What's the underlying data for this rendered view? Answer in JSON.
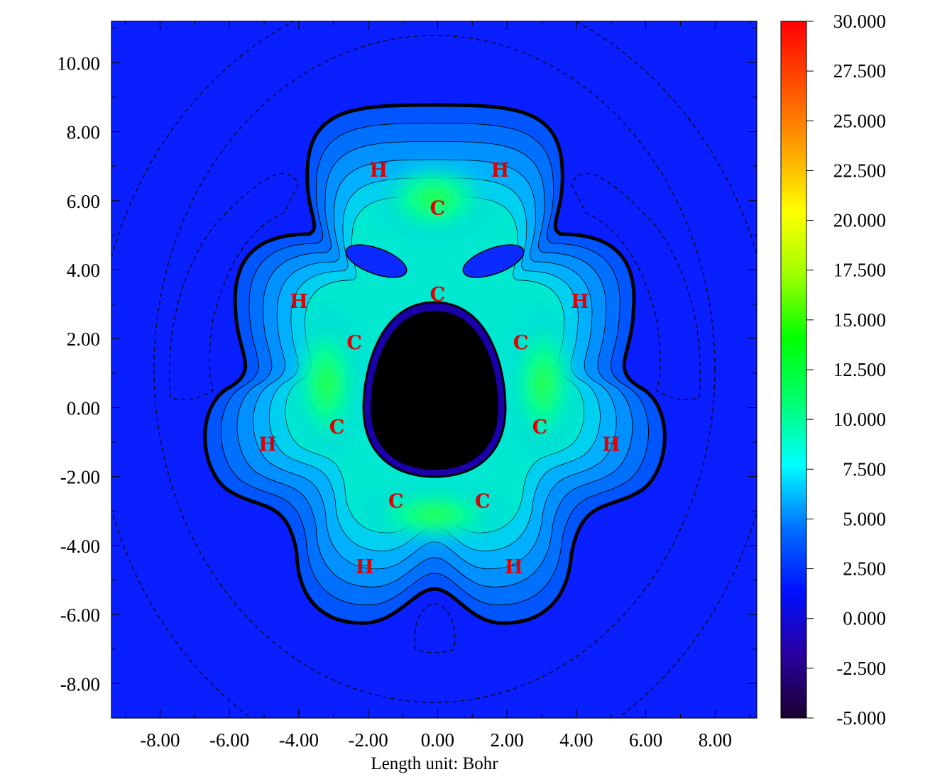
{
  "chart_data": {
    "type": "heatmap",
    "title": "",
    "xlabel": "Length unit: Bohr",
    "ylabel": "",
    "xlim": [
      -9.4,
      9.2
    ],
    "ylim": [
      -9.0,
      11.2
    ],
    "x_ticks": [
      {
        "value": -8,
        "label": "-8.00"
      },
      {
        "value": -6,
        "label": "-6.00"
      },
      {
        "value": -4,
        "label": "-4.00"
      },
      {
        "value": -2,
        "label": "-2.00"
      },
      {
        "value": 0,
        "label": "0.00"
      },
      {
        "value": 2,
        "label": "2.00"
      },
      {
        "value": 4,
        "label": "4.00"
      },
      {
        "value": 6,
        "label": "6.00"
      },
      {
        "value": 8,
        "label": "8.00"
      }
    ],
    "y_ticks": [
      {
        "value": 10,
        "label": "10.00"
      },
      {
        "value": 8,
        "label": "8.00"
      },
      {
        "value": 6,
        "label": "6.00"
      },
      {
        "value": 4,
        "label": "4.00"
      },
      {
        "value": 2,
        "label": "2.00"
      },
      {
        "value": 0,
        "label": "0.00"
      },
      {
        "value": -2,
        "label": "-2.00"
      },
      {
        "value": -4,
        "label": "-4.00"
      },
      {
        "value": -6,
        "label": "-6.00"
      },
      {
        "value": -8,
        "label": "-8.00"
      }
    ],
    "colorbar": {
      "range": [
        -5,
        30
      ],
      "ticks": [
        {
          "value": 30,
          "label": "30.000"
        },
        {
          "value": 27.5,
          "label": "27.500"
        },
        {
          "value": 25,
          "label": "25.000"
        },
        {
          "value": 22.5,
          "label": "22.500"
        },
        {
          "value": 20,
          "label": "20.000"
        },
        {
          "value": 17.5,
          "label": "17.500"
        },
        {
          "value": 15,
          "label": "15.000"
        },
        {
          "value": 12.5,
          "label": "12.500"
        },
        {
          "value": 10,
          "label": "10.000"
        },
        {
          "value": 7.5,
          "label": "7.500"
        },
        {
          "value": 5,
          "label": "5.000"
        },
        {
          "value": 2.5,
          "label": "2.500"
        },
        {
          "value": 0,
          "label": "0.000"
        },
        {
          "value": -2.5,
          "label": "-2.500"
        },
        {
          "value": -5,
          "label": "-5.000"
        }
      ],
      "colors": [
        "#1a0030",
        "#2a00a0",
        "#0010ff",
        "#0070ff",
        "#00ffff",
        "#00ff70",
        "#00ff00",
        "#a0ff00",
        "#ffff00",
        "#ffa000",
        "#ff5000",
        "#ff0000"
      ]
    },
    "atoms": [
      {
        "label": "C",
        "x": 0.0,
        "y": 5.8
      },
      {
        "label": "H",
        "x": -1.7,
        "y": 6.9
      },
      {
        "label": "H",
        "x": 1.8,
        "y": 6.9
      },
      {
        "label": "C",
        "x": 0.0,
        "y": 3.3
      },
      {
        "label": "H",
        "x": -4.0,
        "y": 3.1
      },
      {
        "label": "H",
        "x": 4.1,
        "y": 3.1
      },
      {
        "label": "C",
        "x": -2.4,
        "y": 1.9
      },
      {
        "label": "C",
        "x": 2.4,
        "y": 1.9
      },
      {
        "label": "C",
        "x": -2.9,
        "y": -0.55
      },
      {
        "label": "C",
        "x": 2.95,
        "y": -0.55
      },
      {
        "label": "H",
        "x": -4.9,
        "y": -1.05
      },
      {
        "label": "H",
        "x": 5.0,
        "y": -1.05
      },
      {
        "label": "C",
        "x": -1.2,
        "y": -2.7
      },
      {
        "label": "C",
        "x": 1.3,
        "y": -2.7
      },
      {
        "label": "H",
        "x": -2.1,
        "y": -4.6
      },
      {
        "label": "H",
        "x": 2.2,
        "y": -4.6
      }
    ]
  }
}
